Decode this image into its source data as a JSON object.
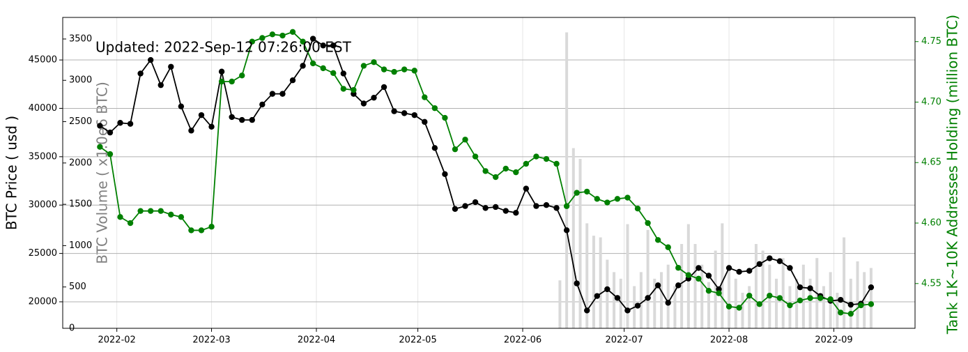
{
  "chart_data": {
    "type": "line",
    "title": "Updated: 2022-Sep-12 07:26:00 EST",
    "ylabel": "BTC Price ( usd )",
    "y2label": "Tank 1K~10K Addresses Holding (million BTC)",
    "y3label": "BTC Volume ( x1.0e6 BTC)",
    "grid": true,
    "xlim": [
      16,
      268
    ],
    "xticks": [
      {
        "value": 32,
        "label": "2022-02"
      },
      {
        "value": 60,
        "label": "2022-03"
      },
      {
        "value": 91,
        "label": "2022-04"
      },
      {
        "value": 121,
        "label": "2022-05"
      },
      {
        "value": 152,
        "label": "2022-06"
      },
      {
        "value": 182,
        "label": "2022-07"
      },
      {
        "value": 213,
        "label": "2022-08"
      },
      {
        "value": 244,
        "label": "2022-09"
      }
    ],
    "ylim": [
      17260,
      49400
    ],
    "yticks": [
      20000,
      25000,
      30000,
      35000,
      40000,
      45000
    ],
    "y2lim": [
      4.513,
      4.77
    ],
    "y2ticks": [
      4.55,
      {
        "value": 4.6,
        "label": "4.60"
      },
      4.65,
      {
        "value": 4.7,
        "label": "4.70"
      },
      4.75
    ],
    "y3lim": [
      0,
      3761
    ],
    "y3ticks": [
      0,
      500,
      1000,
      1500,
      2000,
      2500,
      3000,
      3500
    ],
    "x": [
      27,
      30,
      33,
      36,
      39,
      42,
      45,
      48,
      51,
      54,
      57,
      60,
      63,
      66,
      69,
      72,
      75,
      78,
      81,
      84,
      87,
      90,
      93,
      96,
      99,
      102,
      105,
      108,
      111,
      114,
      117,
      120,
      123,
      126,
      129,
      132,
      135,
      138,
      141,
      144,
      147,
      150,
      153,
      156,
      159,
      162,
      165,
      168,
      171,
      174,
      177,
      180,
      183,
      186,
      189,
      192,
      195,
      198,
      201,
      204,
      207,
      210,
      213,
      216,
      219,
      222,
      225,
      228,
      231,
      234,
      237,
      240,
      243,
      246,
      249,
      252,
      255
    ],
    "series": [
      {
        "type": "bar",
        "axis": "y3",
        "color": "#d9d9d9",
        "x": [
          163,
          165,
          167,
          169,
          171,
          173,
          175,
          177,
          179,
          181,
          183,
          185,
          187,
          189,
          191,
          193,
          195,
          197,
          199,
          201,
          203,
          205,
          207,
          209,
          211,
          213,
          215,
          217,
          219,
          221,
          223,
          225,
          227,
          229,
          231,
          233,
          235,
          237,
          239,
          241,
          243,
          245,
          247,
          249,
          251,
          253,
          255
        ],
        "values": [
          580,
          3580,
          2180,
          2050,
          1270,
          1120,
          1100,
          830,
          680,
          600,
          1260,
          510,
          680,
          1190,
          600,
          680,
          770,
          510,
          1020,
          1260,
          1020,
          770,
          560,
          940,
          1270,
          770,
          600,
          430,
          510,
          1020,
          940,
          770,
          600,
          850,
          510,
          600,
          770,
          600,
          850,
          510,
          680,
          430,
          1100,
          600,
          810,
          680,
          730
        ]
      },
      {
        "type": "line",
        "axis": "y",
        "color": "#000000",
        "values": [
          38200,
          37500,
          38500,
          38400,
          43600,
          45000,
          42400,
          44300,
          40200,
          37700,
          39300,
          38100,
          43800,
          39100,
          38800,
          38800,
          40400,
          41500,
          41500,
          42900,
          44400,
          47200,
          46500,
          46500,
          43600,
          41500,
          40500,
          41100,
          42200,
          39700,
          39500,
          39300,
          38600,
          35900,
          33200,
          29600,
          29900,
          30300,
          29700,
          29800,
          29400,
          29200,
          31700,
          29900,
          30000,
          29700,
          27400,
          21900,
          19100,
          20600,
          21300,
          20400,
          19100,
          19600,
          20400,
          21700,
          19900,
          21700,
          22400,
          23500,
          22700,
          21300,
          23500,
          23100,
          23200,
          23900,
          24500,
          24200,
          23500,
          21500,
          21400,
          20600,
          20100,
          20200,
          19700,
          19800,
          21500
        ]
      },
      {
        "type": "line",
        "axis": "y2",
        "color": "#008000",
        "values": [
          4.663,
          4.657,
          4.605,
          4.6,
          4.61,
          4.61,
          4.61,
          4.607,
          4.605,
          4.594,
          4.594,
          4.597,
          4.717,
          4.717,
          4.722,
          4.75,
          4.753,
          4.756,
          4.755,
          4.758,
          4.75,
          4.732,
          4.728,
          4.724,
          4.711,
          4.71,
          4.73,
          4.733,
          4.727,
          4.725,
          4.727,
          4.726,
          4.704,
          4.695,
          4.687,
          4.661,
          4.669,
          4.655,
          4.643,
          4.638,
          4.645,
          4.642,
          4.649,
          4.655,
          4.653,
          4.649,
          4.614,
          4.625,
          4.626,
          4.62,
          4.617,
          4.62,
          4.621,
          4.612,
          4.6,
          4.586,
          4.58,
          4.563,
          4.557,
          4.554,
          4.544,
          4.542,
          4.531,
          4.53,
          4.54,
          4.533,
          4.54,
          4.538,
          4.532,
          4.536,
          4.538,
          4.538,
          4.537,
          4.526,
          4.525,
          4.532,
          4.533
        ]
      }
    ]
  }
}
